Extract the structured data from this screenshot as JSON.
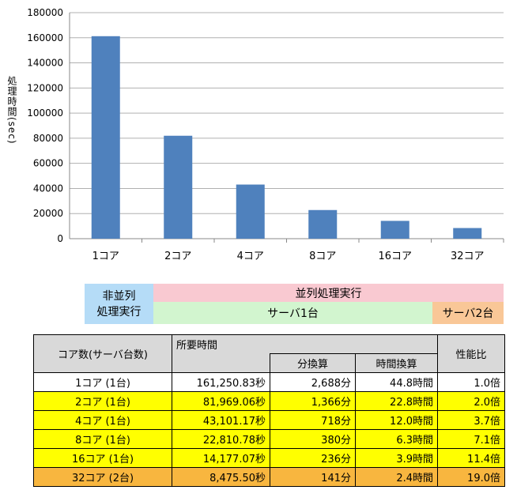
{
  "chart_data": {
    "type": "bar",
    "categories": [
      "1コア",
      "2コア",
      "4コア",
      "8コア",
      "16コア",
      "32コア"
    ],
    "values": [
      161250.83,
      81969.06,
      43101.17,
      22810.78,
      14177.07,
      8475.5
    ],
    "title": "",
    "xlabel": "",
    "ylabel": "処理時間(sec)",
    "ylim": [
      0,
      180000
    ],
    "yticks": [
      0,
      20000,
      40000,
      60000,
      80000,
      100000,
      120000,
      140000,
      160000,
      180000
    ],
    "grid": true,
    "bar_color": "#4f81bd"
  },
  "bands": {
    "sequential": [
      "非並列",
      "処理実行"
    ],
    "parallel": "並列処理実行",
    "server1": "サーバ1台",
    "server2": "サーバ2台"
  },
  "table": {
    "headers": {
      "cores": "コア数(サーバ台数)",
      "time": "所要時間",
      "minutes": "分換算",
      "hours": "時間換算",
      "perf": "性能比"
    },
    "rows": [
      {
        "cores": "1コア (1台)",
        "sec": "161,250.83秒",
        "min": "2,688分",
        "hour": "44.8時間",
        "ratio": "1.0倍",
        "style": "w"
      },
      {
        "cores": "2コア (1台)",
        "sec": "81,969.06秒",
        "min": "1,366分",
        "hour": "22.8時間",
        "ratio": "2.0倍",
        "style": "y"
      },
      {
        "cores": "4コア (1台)",
        "sec": "43,101.17秒",
        "min": "718分",
        "hour": "12.0時間",
        "ratio": "3.7倍",
        "style": "y"
      },
      {
        "cores": "8コア (1台)",
        "sec": "22,810.78秒",
        "min": "380分",
        "hour": "6.3時間",
        "ratio": "7.1倍",
        "style": "y"
      },
      {
        "cores": "16コア (1台)",
        "sec": "14,177.07秒",
        "min": "236分",
        "hour": "3.9時間",
        "ratio": "11.4倍",
        "style": "y"
      },
      {
        "cores": "32コア (2台)",
        "sec": "8,475.50秒",
        "min": "141分",
        "hour": "2.4時間",
        "ratio": "19.0倍",
        "style": "o"
      }
    ]
  }
}
